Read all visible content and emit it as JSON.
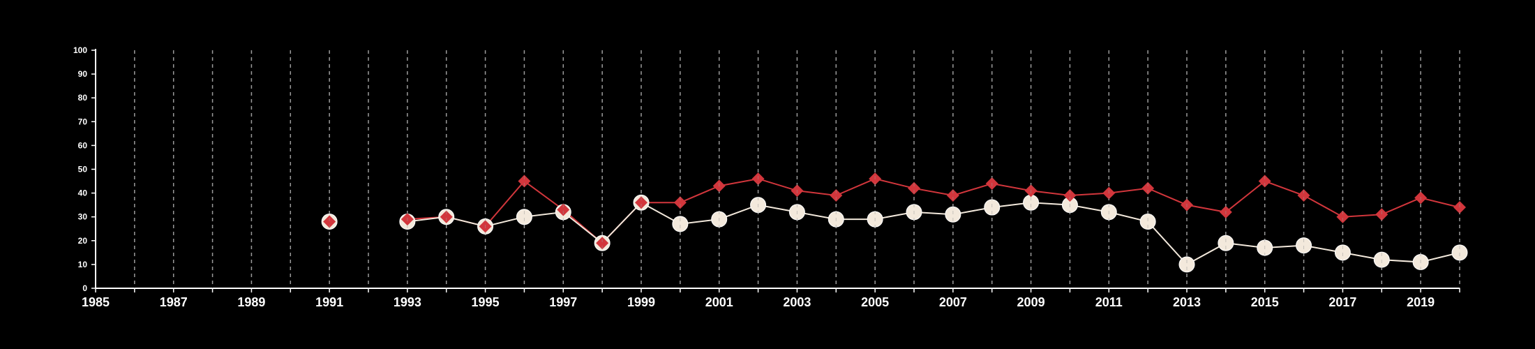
{
  "chart_data": {
    "type": "line",
    "title": "",
    "xlabel": "",
    "ylabel": "",
    "xlim": [
      1985,
      2020
    ],
    "ylim": [
      0,
      100
    ],
    "x_ticks": [
      1985,
      1987,
      1989,
      1991,
      1993,
      1995,
      1997,
      1999,
      2001,
      2003,
      2005,
      2007,
      2009,
      2011,
      2013,
      2015,
      2017,
      2019
    ],
    "y_ticks": [
      0,
      10,
      20,
      30,
      40,
      50,
      60,
      70,
      80,
      90,
      100
    ],
    "vertical_grid": "dashed, every year",
    "colors": {
      "background": "#000000",
      "axis": "#ffffff",
      "grid": "#9a9a9a",
      "red": "#d2363c",
      "white": "#f3e9dc"
    },
    "series": [
      {
        "color": "#d2363c",
        "marker": "diamond",
        "points": [
          {
            "x": 1991,
            "y": 28
          },
          {
            "x": 1993,
            "y": 29
          },
          {
            "x": 1994,
            "y": 30
          },
          {
            "x": 1995,
            "y": 26
          },
          {
            "x": 1996,
            "y": 45
          },
          {
            "x": 1997,
            "y": 33
          },
          {
            "x": 1998,
            "y": 19
          },
          {
            "x": 1999,
            "y": 36
          },
          {
            "x": 2000,
            "y": 36
          },
          {
            "x": 2001,
            "y": 43
          },
          {
            "x": 2002,
            "y": 46
          },
          {
            "x": 2003,
            "y": 41
          },
          {
            "x": 2004,
            "y": 39
          },
          {
            "x": 2005,
            "y": 46
          },
          {
            "x": 2006,
            "y": 42
          },
          {
            "x": 2007,
            "y": 39
          },
          {
            "x": 2008,
            "y": 44
          },
          {
            "x": 2009,
            "y": 41
          },
          {
            "x": 2010,
            "y": 39
          },
          {
            "x": 2011,
            "y": 40
          },
          {
            "x": 2012,
            "y": 42
          },
          {
            "x": 2013,
            "y": 35
          },
          {
            "x": 2014,
            "y": 32
          },
          {
            "x": 2015,
            "y": 45
          },
          {
            "x": 2016,
            "y": 39
          },
          {
            "x": 2017,
            "y": 30
          },
          {
            "x": 2018,
            "y": 31
          },
          {
            "x": 2019,
            "y": 38
          },
          {
            "x": 2020,
            "y": 34
          }
        ]
      },
      {
        "color": "#f3e9dc",
        "marker": "circle",
        "points": [
          {
            "x": 1991,
            "y": 28
          },
          {
            "x": 1993,
            "y": 28
          },
          {
            "x": 1994,
            "y": 30
          },
          {
            "x": 1995,
            "y": 26
          },
          {
            "x": 1996,
            "y": 30
          },
          {
            "x": 1997,
            "y": 32
          },
          {
            "x": 1998,
            "y": 19
          },
          {
            "x": 1999,
            "y": 36
          },
          {
            "x": 2000,
            "y": 27
          },
          {
            "x": 2001,
            "y": 29
          },
          {
            "x": 2002,
            "y": 35
          },
          {
            "x": 2003,
            "y": 32
          },
          {
            "x": 2004,
            "y": 29
          },
          {
            "x": 2005,
            "y": 29
          },
          {
            "x": 2006,
            "y": 32
          },
          {
            "x": 2007,
            "y": 31
          },
          {
            "x": 2008,
            "y": 34
          },
          {
            "x": 2009,
            "y": 36
          },
          {
            "x": 2010,
            "y": 35
          },
          {
            "x": 2011,
            "y": 32
          },
          {
            "x": 2012,
            "y": 28
          },
          {
            "x": 2013,
            "y": 10
          },
          {
            "x": 2014,
            "y": 19
          },
          {
            "x": 2015,
            "y": 17
          },
          {
            "x": 2016,
            "y": 18
          },
          {
            "x": 2017,
            "y": 15
          },
          {
            "x": 2018,
            "y": 12
          },
          {
            "x": 2019,
            "y": 11
          },
          {
            "x": 2020,
            "y": 15
          }
        ]
      }
    ]
  }
}
